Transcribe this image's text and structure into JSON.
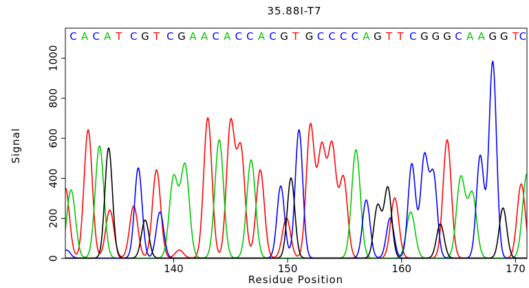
{
  "chart_data": {
    "type": "line",
    "title": "35.88I-T7",
    "xlabel": "Residue Position",
    "ylabel": "Signal",
    "xlim": [
      130.5,
      171
    ],
    "ylim": [
      0,
      1150
    ],
    "x_ticks": [
      140,
      150,
      160,
      170
    ],
    "y_ticks": [
      0,
      200,
      400,
      600,
      800,
      1000
    ],
    "grid": false,
    "colors": {
      "A": "#00c800",
      "C": "#0000ff",
      "G": "#000000",
      "T": "#ff0000"
    },
    "sequence": [
      {
        "base": "C",
        "x": 131.2
      },
      {
        "base": "A",
        "x": 132.2
      },
      {
        "base": "C",
        "x": 133.2
      },
      {
        "base": "A",
        "x": 134.2
      },
      {
        "base": "T",
        "x": 135.2
      },
      {
        "base": "C",
        "x": 136.5
      },
      {
        "base": "G",
        "x": 137.5
      },
      {
        "base": "T",
        "x": 138.5
      },
      {
        "base": "C",
        "x": 139.7
      },
      {
        "base": "G",
        "x": 140.7
      },
      {
        "base": "A",
        "x": 141.7
      },
      {
        "base": "A",
        "x": 142.7
      },
      {
        "base": "C",
        "x": 143.7
      },
      {
        "base": "A",
        "x": 144.7
      },
      {
        "base": "C",
        "x": 145.7
      },
      {
        "base": "C",
        "x": 146.7
      },
      {
        "base": "A",
        "x": 147.7
      },
      {
        "base": "C",
        "x": 148.7
      },
      {
        "base": "G",
        "x": 149.7
      },
      {
        "base": "T",
        "x": 150.7
      },
      {
        "base": "G",
        "x": 151.9
      },
      {
        "base": "C",
        "x": 152.9
      },
      {
        "base": "C",
        "x": 153.9
      },
      {
        "base": "C",
        "x": 154.9
      },
      {
        "base": "C",
        "x": 155.9
      },
      {
        "base": "A",
        "x": 156.9
      },
      {
        "base": "G",
        "x": 157.9
      },
      {
        "base": "T",
        "x": 158.9
      },
      {
        "base": "T",
        "x": 159.9
      },
      {
        "base": "C",
        "x": 161.0
      },
      {
        "base": "G",
        "x": 162.0
      },
      {
        "base": "G",
        "x": 163.0
      },
      {
        "base": "G",
        "x": 164.0
      },
      {
        "base": "C",
        "x": 165.0
      },
      {
        "base": "A",
        "x": 166.0
      },
      {
        "base": "A",
        "x": 167.0
      },
      {
        "base": "G",
        "x": 168.0
      },
      {
        "base": "G",
        "x": 169.0
      },
      {
        "base": "T",
        "x": 170.0
      },
      {
        "base": "C",
        "x": 171.0
      }
    ],
    "series": [
      {
        "name": "T",
        "color": "#ff0000",
        "width": 0.36,
        "peaks": [
          [
            130.5,
            350
          ],
          [
            132.5,
            640
          ],
          [
            134.4,
            240
          ],
          [
            136.5,
            260
          ],
          [
            138.5,
            440
          ],
          [
            140.5,
            40
          ],
          [
            143.0,
            700
          ],
          [
            145.0,
            670
          ],
          [
            145.9,
            540
          ],
          [
            147.6,
            440
          ],
          [
            149.9,
            200
          ],
          [
            152.0,
            660
          ],
          [
            153.0,
            540
          ],
          [
            153.9,
            550
          ],
          [
            154.9,
            400
          ],
          [
            159.4,
            300
          ],
          [
            164.0,
            590
          ],
          [
            170.5,
            370
          ]
        ]
      },
      {
        "name": "A",
        "color": "#00c800",
        "width": 0.38,
        "peaks": [
          [
            131.0,
            340
          ],
          [
            133.5,
            560
          ],
          [
            140.0,
            400
          ],
          [
            141.0,
            460
          ],
          [
            144.0,
            590
          ],
          [
            146.8,
            490
          ],
          [
            156.0,
            540
          ],
          [
            160.8,
            230
          ],
          [
            165.2,
            400
          ],
          [
            166.2,
            320
          ],
          [
            171.0,
            420
          ]
        ]
      },
      {
        "name": "C",
        "color": "#0000ff",
        "width": 0.33,
        "peaks": [
          [
            130.6,
            40
          ],
          [
            136.9,
            450
          ],
          [
            138.8,
            230
          ],
          [
            149.4,
            360
          ],
          [
            151.0,
            640
          ],
          [
            156.9,
            290
          ],
          [
            159.0,
            200
          ],
          [
            160.9,
            470
          ],
          [
            162.0,
            500
          ],
          [
            162.8,
            410
          ],
          [
            166.9,
            510
          ],
          [
            168.0,
            980
          ]
        ]
      },
      {
        "name": "G",
        "color": "#000000",
        "width": 0.33,
        "peaks": [
          [
            134.3,
            550
          ],
          [
            137.5,
            190
          ],
          [
            150.3,
            400
          ],
          [
            157.9,
            260
          ],
          [
            158.8,
            350
          ],
          [
            163.4,
            170
          ],
          [
            168.9,
            250
          ]
        ]
      }
    ]
  }
}
